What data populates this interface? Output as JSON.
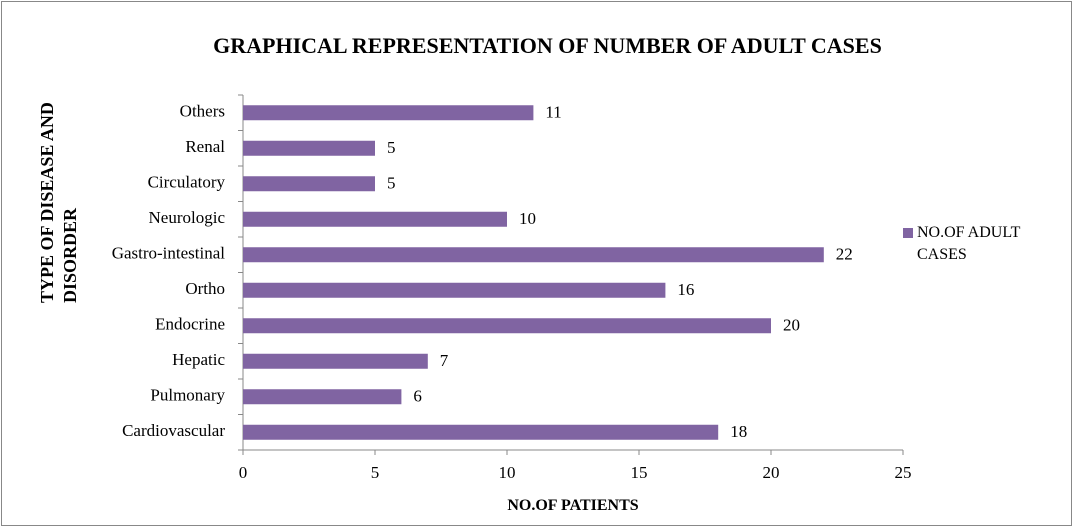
{
  "chart_data": {
    "type": "bar",
    "orientation": "horizontal",
    "title": "GRAPHICAL REPRESENTATION OF NUMBER OF ADULT CASES",
    "x_label": "NO.OF PATIENTS",
    "y_label": "TYPE OF DISEASE AND DISORDER",
    "categories": [
      "Cardiovascular",
      "Pulmonary",
      "Hepatic",
      "Endocrine",
      "Ortho",
      "Gastro-intestinal",
      "Neurologic",
      "Circulatory",
      "Renal",
      "Others"
    ],
    "series": [
      {
        "name": "NO.OF ADULT CASES",
        "color": "#8064a2",
        "values": [
          18,
          6,
          7,
          20,
          16,
          22,
          10,
          5,
          5,
          11
        ]
      }
    ],
    "xlim": [
      0,
      25
    ],
    "xticks": [
      0,
      5,
      10,
      15,
      20,
      25
    ],
    "legend": "right",
    "grid": false
  }
}
